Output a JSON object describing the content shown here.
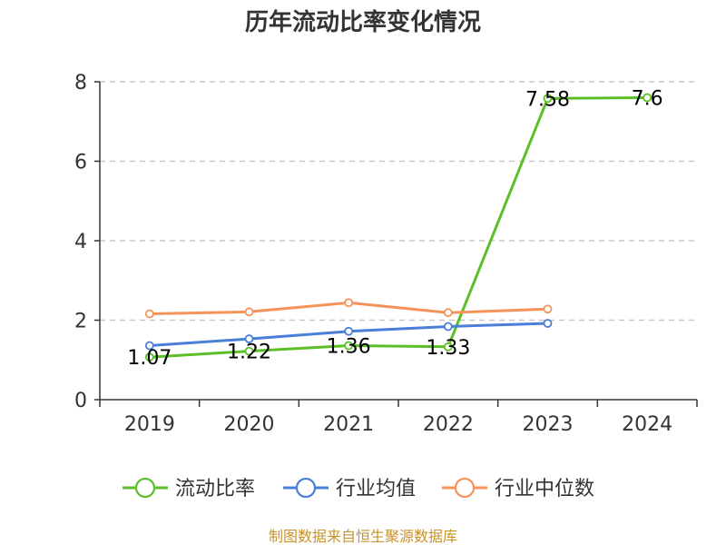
{
  "chart_data": {
    "type": "line",
    "title": "历年流动比率变化情况",
    "categories": [
      "2019",
      "2020",
      "2021",
      "2022",
      "2023",
      "2024"
    ],
    "ylim": [
      0,
      8
    ],
    "yticks": [
      0,
      2,
      4,
      6,
      8
    ],
    "grid": true,
    "legend_position": "bottom",
    "series": [
      {
        "name": "流动比率",
        "color": "#5cbf27",
        "values": [
          1.07,
          1.22,
          1.36,
          1.33,
          7.58,
          7.6
        ],
        "labels": [
          "1.07",
          "1.22",
          "1.36",
          "1.33",
          "7.58",
          "7.6"
        ]
      },
      {
        "name": "行业均值",
        "color": "#4a7fd9",
        "values": [
          1.36,
          1.53,
          1.72,
          1.84,
          1.92,
          null
        ],
        "labels": []
      },
      {
        "name": "行业中位数",
        "color": "#f5935a",
        "values": [
          2.16,
          2.21,
          2.44,
          2.19,
          2.28,
          null
        ],
        "labels": []
      }
    ]
  },
  "source": "制图数据来自恒生聚源数据库"
}
